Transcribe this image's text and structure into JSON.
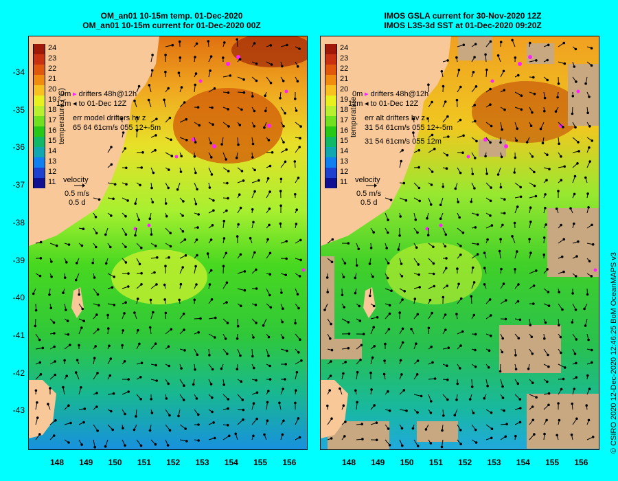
{
  "left_panel": {
    "title_line1": "OM_an01 10-15m temp. 01-Dec-2020",
    "title_line2": "OM_an01 10-15m current for 01-Dec-2020 00Z",
    "legend_drifters_1": "drifters 48h@12h",
    "legend_drifters_2": "to 01-Dec 12Z",
    "depth_label_1": "0m",
    "depth_label_2": "12m",
    "err_line1": "err model drifters hv z",
    "err_line2": "65 64 61cm/s 055 12+-5m",
    "err_line3": "",
    "velocity_label": "velocity",
    "velocity_scale": "0.5 m/s",
    "velocity_time": "0.5 d",
    "colorbar_title": "temperature (°C)"
  },
  "right_panel": {
    "title_line1": "IMOS GSLA current for 30-Nov-2020 12Z",
    "title_line2": "IMOS L3S-3d SST at 01-Dec-2020 09:20Z",
    "legend_drifters_1": "drifters 48h@12h",
    "legend_drifters_2": "to 01-Dec 12Z",
    "depth_label_1": "0m",
    "depth_label_2": "12m",
    "err_line1": "err alt drifters hv z",
    "err_line2": "31 54 61cm/s 055 12+-5m",
    "err_line3": "31 54 61cm/s 055 12m",
    "velocity_label": "velocity",
    "velocity_scale": "0.5 m/s",
    "velocity_time": "0.5 d",
    "colorbar_title": "temperature"
  },
  "colorbar_ticks": [
    "24",
    "23",
    "22",
    "21",
    "20",
    "19",
    "18",
    "17",
    "16",
    "15",
    "14",
    "13",
    "12",
    "11"
  ],
  "colorbar_colors": [
    "#a01808",
    "#c83210",
    "#e0580c",
    "#f08c10",
    "#f8c020",
    "#e8f020",
    "#b8f030",
    "#70e020",
    "#28c818",
    "#10b868",
    "#10a8b0",
    "#1080f0",
    "#2040d0",
    "#101090"
  ],
  "y_ticks": [
    "-34",
    "-35",
    "-36",
    "-37",
    "-38",
    "-39",
    "-40",
    "-41",
    "-42",
    "-43"
  ],
  "x_ticks": [
    "148",
    "149",
    "150",
    "151",
    "152",
    "153",
    "154",
    "155",
    "156"
  ],
  "credit": "© CSIRO 2020   12-Dec-2020 12:46:25 BoM OceanMAPS v3",
  "colors": {
    "background": "#00ffff",
    "land": "#f8c898",
    "drifter": "#ff20ff",
    "no_data": "#c8a880"
  }
}
